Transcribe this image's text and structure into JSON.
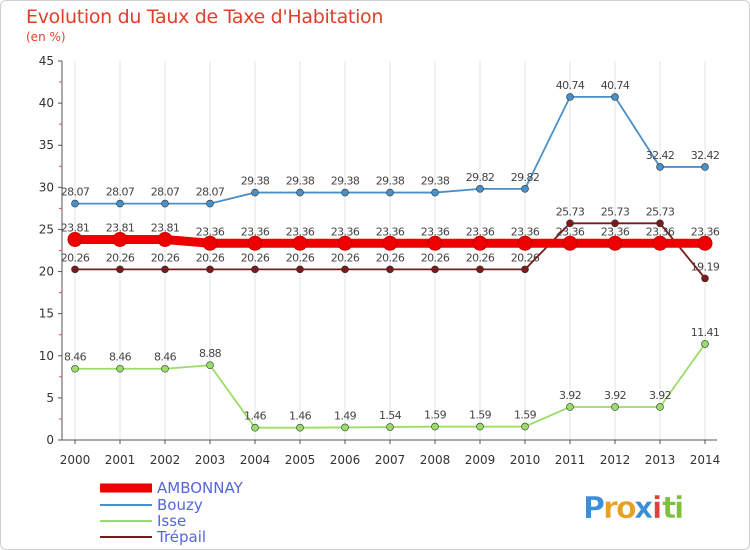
{
  "chart_data": {
    "type": "line",
    "title": "Evolution du Taux de Taxe d'Habitation",
    "subtitle": "(en %)",
    "x": [
      "2000",
      "2001",
      "2002",
      "2003",
      "2004",
      "2005",
      "2006",
      "2007",
      "2008",
      "2009",
      "2010",
      "2011",
      "2012",
      "2013",
      "2014"
    ],
    "ylim": [
      0,
      45
    ],
    "yticks": [
      "0",
      "5",
      "10",
      "15",
      "20",
      "25",
      "30",
      "35",
      "40",
      "45"
    ],
    "grid": "vertical",
    "legend_position": "bottom-left",
    "series": [
      {
        "name": "AMBONNAY",
        "color": "#ee0000",
        "values": [
          23.81,
          23.81,
          23.81,
          23.36,
          23.36,
          23.36,
          23.36,
          23.36,
          23.36,
          23.36,
          23.36,
          23.36,
          23.36,
          23.36,
          23.36
        ],
        "labels": [
          "23.81",
          "23.81",
          "23.81",
          "23.36",
          "23.36",
          "23.36",
          "23.36",
          "23.36",
          "23.36",
          "23.36",
          "23.36",
          "23.36",
          "23.36",
          "23.36",
          "23.36"
        ]
      },
      {
        "name": "Bouzy",
        "color": "#4a90c8",
        "values": [
          28.07,
          28.07,
          28.07,
          28.07,
          29.38,
          29.38,
          29.38,
          29.38,
          29.38,
          29.82,
          29.82,
          40.74,
          40.74,
          32.42,
          32.42
        ],
        "labels": [
          "28.07",
          "28.07",
          "28.07",
          "28.07",
          "29.38",
          "29.38",
          "29.38",
          "29.38",
          "29.38",
          "29.82",
          "29.82",
          "40.74",
          "40.74",
          "32.42",
          "32.42"
        ]
      },
      {
        "name": "Isse",
        "color": "#99dd66",
        "values": [
          8.46,
          8.46,
          8.46,
          8.88,
          1.46,
          1.46,
          1.49,
          1.54,
          1.59,
          1.59,
          1.59,
          3.92,
          3.92,
          3.92,
          11.41
        ],
        "labels": [
          "8.46",
          "8.46",
          "8.46",
          "8.88",
          "1.46",
          "1.46",
          "1.49",
          "1.54",
          "1.59",
          "1.59",
          "1.59",
          "3.92",
          "3.92",
          "3.92",
          "11.41"
        ]
      },
      {
        "name": "Trépail",
        "color": "#7a1a1a",
        "values": [
          20.26,
          20.26,
          20.26,
          20.26,
          20.26,
          20.26,
          20.26,
          20.26,
          20.26,
          20.26,
          20.26,
          25.73,
          25.73,
          25.73,
          19.19
        ],
        "labels": [
          "20.26",
          "20.26",
          "20.26",
          "20.26",
          "20.26",
          "20.26",
          "20.26",
          "20.26",
          "20.26",
          "20.26",
          "20.26",
          "25.73",
          "25.73",
          "25.73",
          "19.19"
        ]
      }
    ]
  },
  "logo": {
    "p": "P",
    "r": "r",
    "o": "o",
    "x": "x",
    "i": "i",
    "t": "t",
    "i2": "i"
  }
}
